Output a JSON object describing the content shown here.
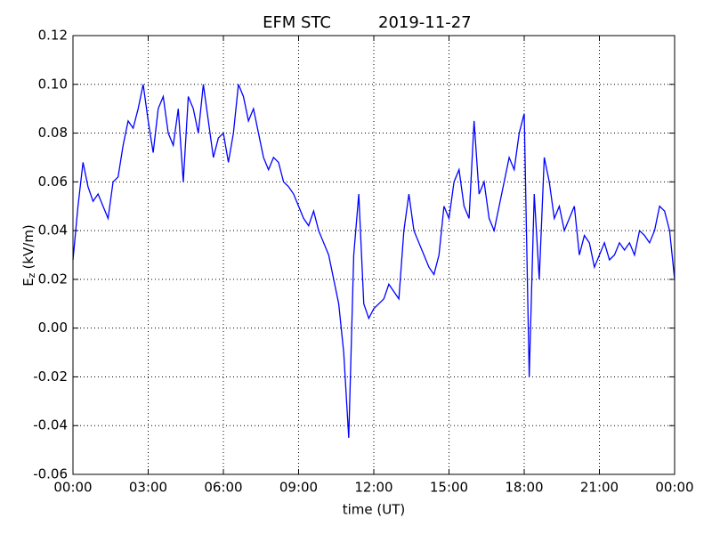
{
  "chart_data": {
    "type": "line",
    "title": "EFM STC",
    "subtitle": "2019-11-27",
    "xlabel": "time (UT)",
    "ylabel": {
      "symbol": "E",
      "subscript": "z",
      "unit": "(kV/m)"
    },
    "x": [
      0,
      0.2,
      0.4,
      0.6,
      0.8,
      1,
      1.2,
      1.4,
      1.6,
      1.8,
      2,
      2.2,
      2.4,
      2.6,
      2.8,
      3,
      3.2,
      3.4,
      3.6,
      3.8,
      4,
      4.2,
      4.4,
      4.6,
      4.8,
      5,
      5.2,
      5.4,
      5.6,
      5.8,
      6,
      6.2,
      6.4,
      6.6,
      6.8,
      7,
      7.2,
      7.4,
      7.6,
      7.8,
      8,
      8.2,
      8.4,
      8.6,
      8.8,
      9,
      9.2,
      9.4,
      9.6,
      9.8,
      10,
      10.2,
      10.4,
      10.6,
      10.8,
      11,
      11.2,
      11.4,
      11.6,
      11.8,
      12,
      12.2,
      12.4,
      12.6,
      12.8,
      13,
      13.2,
      13.4,
      13.6,
      13.8,
      14,
      14.2,
      14.4,
      14.6,
      14.8,
      15,
      15.2,
      15.4,
      15.6,
      15.8,
      16,
      16.2,
      16.4,
      16.6,
      16.8,
      17,
      17.2,
      17.4,
      17.6,
      17.8,
      18,
      18.2,
      18.4,
      18.6,
      18.8,
      19,
      19.2,
      19.4,
      19.6,
      19.8,
      20,
      20.2,
      20.4,
      20.6,
      20.8,
      21,
      21.2,
      21.4,
      21.6,
      21.8,
      22,
      22.2,
      22.4,
      22.6,
      22.8,
      23,
      23.2,
      23.4,
      23.6,
      23.8,
      24
    ],
    "series": [
      {
        "name": "Ez",
        "color": "#0000ff",
        "values": [
          0.028,
          0.05,
          0.068,
          0.058,
          0.052,
          0.055,
          0.05,
          0.045,
          0.06,
          0.062,
          0.075,
          0.085,
          0.082,
          0.09,
          0.1,
          0.085,
          0.072,
          0.09,
          0.095,
          0.08,
          0.075,
          0.09,
          0.06,
          0.095,
          0.09,
          0.08,
          0.1,
          0.085,
          0.07,
          0.078,
          0.08,
          0.068,
          0.08,
          0.1,
          0.095,
          0.085,
          0.09,
          0.08,
          0.07,
          0.065,
          0.07,
          0.068,
          0.06,
          0.058,
          0.055,
          0.05,
          0.045,
          0.042,
          0.048,
          0.04,
          0.035,
          0.03,
          0.02,
          0.01,
          -0.01,
          -0.045,
          0.03,
          0.055,
          0.01,
          0.004,
          0.008,
          0.01,
          0.012,
          0.018,
          0.015,
          0.012,
          0.04,
          0.055,
          0.04,
          0.035,
          0.03,
          0.025,
          0.022,
          0.03,
          0.05,
          0.045,
          0.06,
          0.065,
          0.05,
          0.045,
          0.085,
          0.055,
          0.06,
          0.045,
          0.04,
          0.05,
          0.06,
          0.07,
          0.065,
          0.08,
          0.088,
          -0.02,
          0.055,
          0.02,
          0.07,
          0.06,
          0.045,
          0.05,
          0.04,
          0.045,
          0.05,
          0.03,
          0.038,
          0.035,
          0.025,
          0.03,
          0.035,
          0.028,
          0.03,
          0.035,
          0.032,
          0.035,
          0.03,
          0.04,
          0.038,
          0.035,
          0.04,
          0.05,
          0.048,
          0.04,
          0.02
        ]
      }
    ],
    "xlim": [
      0,
      24
    ],
    "xticks": [
      {
        "value": 0,
        "label": "00:00"
      },
      {
        "value": 3,
        "label": "03:00"
      },
      {
        "value": 6,
        "label": "06:00"
      },
      {
        "value": 9,
        "label": "09:00"
      },
      {
        "value": 12,
        "label": "12:00"
      },
      {
        "value": 15,
        "label": "15:00"
      },
      {
        "value": 18,
        "label": "18:00"
      },
      {
        "value": 21,
        "label": "21:00"
      },
      {
        "value": 24,
        "label": "00:00"
      }
    ],
    "ylim": [
      -0.06,
      0.12
    ],
    "yticks": [
      -0.06,
      -0.04,
      -0.02,
      {
        "value": 0,
        "label": "0.00"
      },
      0.02,
      0.04,
      0.06,
      0.08,
      {
        "value": 0.1,
        "label": "0.10"
      },
      0.12
    ],
    "grid": true
  }
}
